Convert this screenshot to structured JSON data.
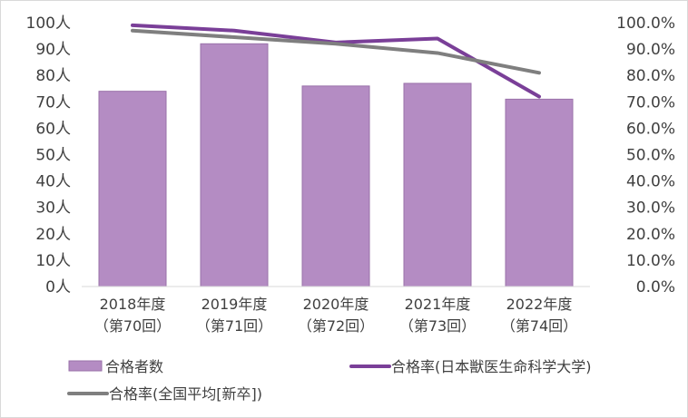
{
  "chart_data": {
    "type": "bar",
    "categories": [
      [
        "2018年度",
        "（第70回）"
      ],
      [
        "2019年度",
        "（第71回）"
      ],
      [
        "2020年度",
        "（第72回）"
      ],
      [
        "2021年度",
        "（第73回）"
      ],
      [
        "2022年度",
        "（第74回）"
      ]
    ],
    "series": [
      {
        "name": "合格者数",
        "kind": "bar",
        "axis": "left",
        "values": [
          74,
          92,
          76,
          77,
          71
        ],
        "color": "#b48cc3"
      },
      {
        "name": "合格率(日本獣医生命科学大学)",
        "kind": "line",
        "axis": "right",
        "values": [
          99.0,
          97.0,
          92.5,
          94.0,
          72.0
        ],
        "color": "#7a3f98"
      },
      {
        "name": "合格率(全国平均[新卒])",
        "kind": "line",
        "axis": "right",
        "values": [
          97.0,
          94.5,
          92.0,
          88.5,
          81.0
        ],
        "color": "#7f7f7f"
      }
    ],
    "y_left": {
      "min": 0,
      "max": 100,
      "step": 10,
      "ticks": [
        "0人",
        "10人",
        "20人",
        "30人",
        "40人",
        "50人",
        "60人",
        "70人",
        "80人",
        "90人",
        "100人"
      ]
    },
    "y_right": {
      "min": 0,
      "max": 100,
      "step": 10,
      "ticks": [
        "0.0%",
        "10.0%",
        "20.0%",
        "30.0%",
        "40.0%",
        "50.0%",
        "60.0%",
        "70.0%",
        "80.0%",
        "90.0%",
        "100.0%"
      ]
    },
    "grid": false,
    "legend_position": "bottom"
  }
}
